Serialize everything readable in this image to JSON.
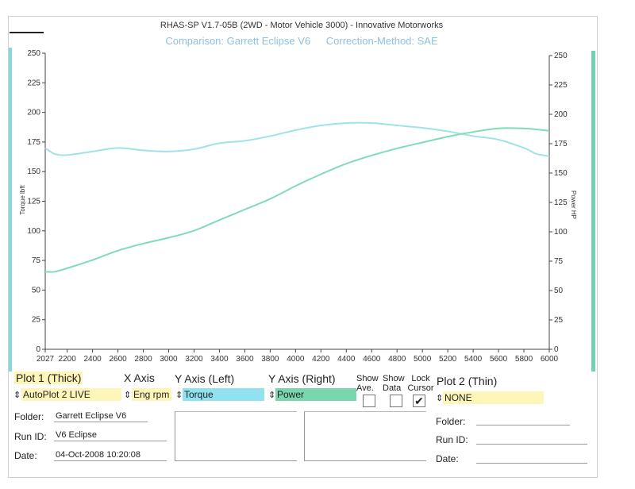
{
  "header": {
    "title": "RHAS-SP V1.7-05B   (2WD - Motor Vehicle 3000) - Innovative Motorworks",
    "comparison": "Comparison: Garrett Eclipse V6",
    "correction": "Correction-Method: SAE"
  },
  "chart_data": {
    "type": "line",
    "x_ticks": [
      "2027",
      "2200",
      "2400",
      "2600",
      "2800",
      "3000",
      "3200",
      "3400",
      "3600",
      "3800",
      "4000",
      "4200",
      "4400",
      "4600",
      "4800",
      "5000",
      "5200",
      "5400",
      "5600",
      "5800",
      "6000"
    ],
    "xlim": [
      2027,
      6000
    ],
    "y_left_ticks": [
      "0",
      "25",
      "50",
      "75",
      "100",
      "125",
      "150",
      "175",
      "200",
      "225",
      "250"
    ],
    "y_right_ticks": [
      "0",
      "25",
      "50",
      "75",
      "100",
      "125",
      "150",
      "175",
      "200",
      "225",
      "250"
    ],
    "ylim": [
      0,
      250
    ],
    "ylabel_left": "Torque lbft",
    "ylabel_right": "Power HP",
    "series": [
      {
        "name": "Torque",
        "color": "#9fe3e8",
        "x": [
          2027,
          2100,
          2200,
          2400,
          2600,
          2800,
          3000,
          3200,
          3400,
          3600,
          3800,
          4000,
          4200,
          4400,
          4600,
          4800,
          5000,
          5200,
          5400,
          5600,
          5800,
          5900,
          6000
        ],
        "y": [
          170,
          165,
          164,
          167,
          170,
          168,
          167,
          169,
          174,
          176,
          180,
          185,
          189,
          191,
          191,
          189,
          187,
          184,
          180,
          177,
          170,
          165,
          163
        ]
      },
      {
        "name": "Power",
        "color": "#7fdcb6",
        "x": [
          2027,
          2100,
          2200,
          2400,
          2600,
          2800,
          3000,
          3200,
          3400,
          3600,
          3800,
          4000,
          4200,
          4400,
          4600,
          4800,
          5000,
          5200,
          5400,
          5600,
          5800,
          6000
        ],
        "y": [
          66,
          66,
          69,
          76,
          84,
          90,
          95,
          101,
          110,
          119,
          128,
          139,
          149,
          158,
          165,
          171,
          176,
          181,
          185,
          188,
          188,
          186
        ]
      }
    ]
  },
  "controls": {
    "plot1_label": "Plot 1 (Thick)",
    "plot1_value": "AutoPlot 2 LIVE",
    "xaxis_label": "X Axis",
    "xaxis_value": "Eng rpm",
    "yleft_label": "Y Axis (Left)",
    "yleft_value": "Torque",
    "yright_label": "Y Axis (Right)",
    "yright_value": "Power",
    "show_ave_label": "Show Ave.",
    "show_data_label": "Show Data",
    "lock_cursor_label": "Lock Cursor",
    "plot2_label": "Plot 2 (Thin)",
    "plot2_value": "NONE"
  },
  "info_left": {
    "folder_label": "Folder:",
    "folder_value": "Garrett Eclipse V6",
    "runid_label": "Run ID:",
    "runid_value": "V6 Eclipse",
    "date_label": "Date:",
    "date_value": "04-Oct-2008  10:20:08"
  },
  "info_right": {
    "folder_label": "Folder:",
    "runid_label": "Run ID:",
    "date_label": "Date:"
  },
  "icons": {
    "sort_arrows": "⇕",
    "checkmark": "✔"
  }
}
